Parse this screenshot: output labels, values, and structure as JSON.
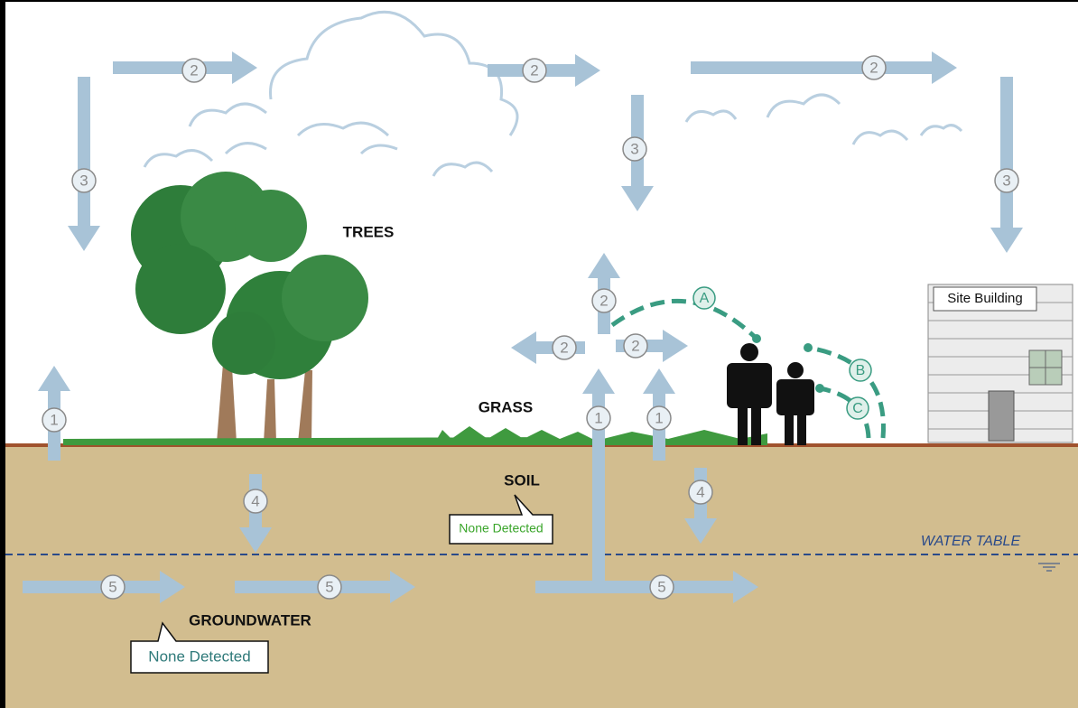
{
  "labels": {
    "trees": "TREES",
    "grass": "GRASS",
    "soil": "SOIL",
    "groundwater": "GROUNDWATER",
    "water_table": "WATER TABLE",
    "site_building": "Site Building"
  },
  "callouts": [
    {
      "text": "None Detected"
    },
    {
      "text": "None Detected"
    }
  ],
  "arrows": [
    {
      "label": "2"
    },
    {
      "label": "2"
    },
    {
      "label": "2"
    },
    {
      "label": "3"
    },
    {
      "label": "3"
    },
    {
      "label": "3"
    },
    {
      "label": "1"
    },
    {
      "label": "1"
    },
    {
      "label": "1"
    },
    {
      "label": "2"
    },
    {
      "label": "2"
    },
    {
      "label": "2"
    },
    {
      "label": "4"
    },
    {
      "label": "4"
    },
    {
      "label": "5"
    },
    {
      "label": "5"
    },
    {
      "label": "5"
    }
  ],
  "pathways": [
    {
      "label": "A"
    },
    {
      "label": "B"
    },
    {
      "label": "C"
    }
  ]
}
